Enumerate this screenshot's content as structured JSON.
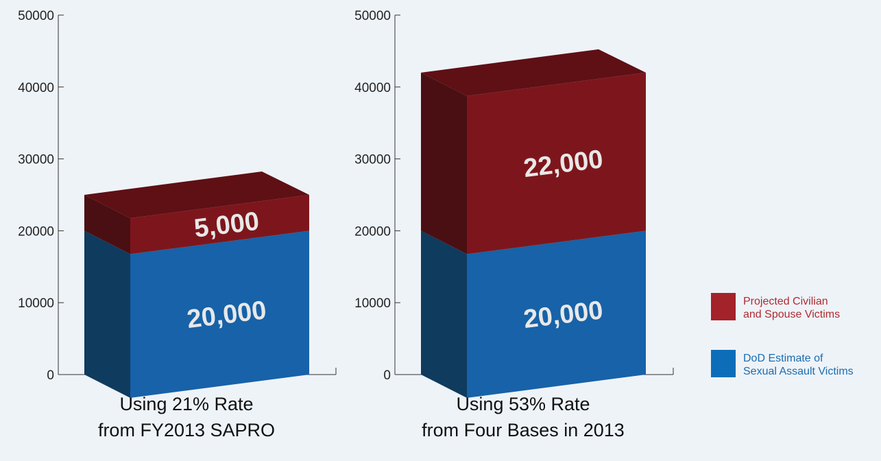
{
  "chart_data": [
    {
      "type": "bar",
      "stacked": true,
      "title": "Using 21% Rate from FY2013 SAPRO",
      "title_lines": [
        "Using 21% Rate",
        "from FY2013 SAPRO"
      ],
      "categories": [
        "Using 21% Rate from FY2013 SAPRO"
      ],
      "series": [
        {
          "name": "DoD Estimate of Sexual Assault Victims",
          "values": [
            20000
          ],
          "label": "20,000"
        },
        {
          "name": "Projected Civilian and Spouse Victims",
          "values": [
            5000
          ],
          "label": "5,000"
        }
      ],
      "ylim": [
        0,
        50000
      ],
      "yticks": [
        "0",
        "10000",
        "20000",
        "30000",
        "40000",
        "50000"
      ]
    },
    {
      "type": "bar",
      "stacked": true,
      "title": "Using 53% Rate from Four Bases in 2013",
      "title_lines": [
        "Using 53% Rate",
        "from Four Bases in 2013"
      ],
      "categories": [
        "Using 53% Rate from Four Bases in 2013"
      ],
      "series": [
        {
          "name": "DoD Estimate of Sexual Assault Victims",
          "values": [
            20000
          ],
          "label": "20,000"
        },
        {
          "name": "Projected Civilian and Spouse Victims",
          "values": [
            22000
          ],
          "label": "22,000"
        }
      ],
      "ylim": [
        0,
        50000
      ],
      "yticks": [
        "0",
        "10000",
        "20000",
        "30000",
        "40000",
        "50000"
      ]
    }
  ],
  "legend": {
    "position": "right",
    "items": [
      {
        "lines": [
          "Projected Civilian",
          "and Spouse Victims"
        ],
        "color": "#a4222a",
        "text_color": "#b02a30"
      },
      {
        "lines": [
          "DoD Estimate of",
          "Sexual Assault Victims"
        ],
        "color": "#0e6db8",
        "text_color": "#1a6cb0"
      }
    ]
  },
  "colors": {
    "blue_front": "#1762a8",
    "blue_side": "#0f3b5e",
    "red_front": "#7d161c",
    "red_side": "#4a0f12",
    "red_top": "#5e1015"
  }
}
